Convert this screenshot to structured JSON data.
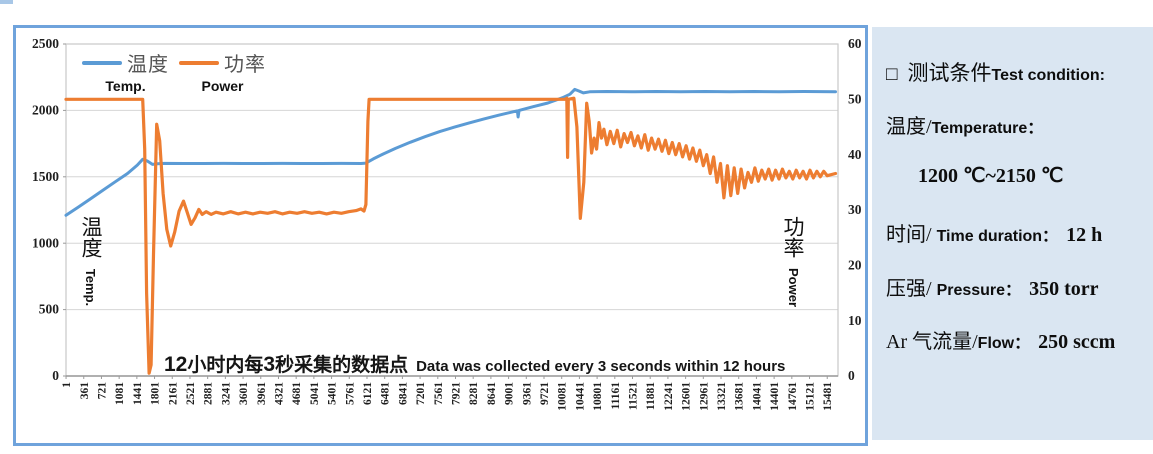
{
  "colors": {
    "temp_blue": "#5B9BD5",
    "power_orange": "#ED7D31",
    "box_border": "#6FA3DC",
    "panel_bg": "#DAE6F2",
    "grid": "#D6D6D6",
    "plot_border": "#C9C9C9",
    "tick_text": "#1F1F1F"
  },
  "chart_data": {
    "type": "line",
    "legend": {
      "position": "top-left-inside",
      "entries": [
        {
          "zh": "温度",
          "en": "Temp."
        },
        {
          "zh": "功率",
          "en": "Power"
        }
      ]
    },
    "x_axis": {
      "max": 15700,
      "tick_labels": [
        "1",
        "361",
        "721",
        "1081",
        "1441",
        "1801",
        "2161",
        "2521",
        "2881",
        "3241",
        "3601",
        "3961",
        "4321",
        "4681",
        "5041",
        "5401",
        "5761",
        "6121",
        "6481",
        "6841",
        "7201",
        "7561",
        "7921",
        "8281",
        "8641",
        "9001",
        "9361",
        "9721",
        "10081",
        "10441",
        "10801",
        "11161",
        "11521",
        "11881",
        "12241",
        "12601",
        "12961",
        "13321",
        "13681",
        "14041",
        "14401",
        "14761",
        "15121",
        "15481"
      ]
    },
    "y_left": {
      "title_zh": "温度",
      "title_en": "Temp.",
      "min": 0,
      "max": 2500,
      "ticks": [
        0,
        500,
        1000,
        1500,
        2000,
        2500
      ]
    },
    "y_right": {
      "title_zh": "功率",
      "title_en": "Power",
      "min": 0,
      "max": 60,
      "ticks": [
        0,
        10,
        20,
        30,
        40,
        50,
        60
      ]
    },
    "grid": true,
    "series": [
      {
        "name_zh": "温度",
        "name_en": "Temp.",
        "axis": "left",
        "color": "#5B9BD5",
        "points": [
          [
            1,
            1210
          ],
          [
            250,
            1272
          ],
          [
            500,
            1335
          ],
          [
            750,
            1398
          ],
          [
            1000,
            1462
          ],
          [
            1250,
            1525
          ],
          [
            1450,
            1588
          ],
          [
            1560,
            1632
          ],
          [
            1650,
            1620
          ],
          [
            1760,
            1593
          ],
          [
            1860,
            1598
          ],
          [
            2000,
            1601
          ],
          [
            2400,
            1600
          ],
          [
            2800,
            1600
          ],
          [
            3200,
            1601
          ],
          [
            3600,
            1600
          ],
          [
            4000,
            1600
          ],
          [
            4400,
            1601
          ],
          [
            4800,
            1600
          ],
          [
            5200,
            1600
          ],
          [
            5600,
            1601
          ],
          [
            6000,
            1600
          ],
          [
            6100,
            1603
          ],
          [
            6250,
            1635
          ],
          [
            6450,
            1672
          ],
          [
            6700,
            1714
          ],
          [
            7000,
            1760
          ],
          [
            7300,
            1802
          ],
          [
            7600,
            1840
          ],
          [
            7900,
            1874
          ],
          [
            8200,
            1906
          ],
          [
            8500,
            1936
          ],
          [
            8800,
            1964
          ],
          [
            9100,
            1990
          ],
          [
            9180,
            1996
          ],
          [
            9195,
            1950
          ],
          [
            9215,
            2000
          ],
          [
            9500,
            2028
          ],
          [
            9800,
            2056
          ],
          [
            10100,
            2096
          ],
          [
            10250,
            2122
          ],
          [
            10345,
            2158
          ],
          [
            10430,
            2146
          ],
          [
            10520,
            2132
          ],
          [
            10650,
            2140
          ],
          [
            11000,
            2142
          ],
          [
            11500,
            2140
          ],
          [
            12000,
            2142
          ],
          [
            12500,
            2140
          ],
          [
            13000,
            2142
          ],
          [
            13500,
            2140
          ],
          [
            14000,
            2142
          ],
          [
            14500,
            2140
          ],
          [
            15000,
            2142
          ],
          [
            15650,
            2141
          ]
        ]
      },
      {
        "name_zh": "功率",
        "name_en": "Power",
        "axis": "right",
        "color": "#ED7D31",
        "points": [
          [
            1,
            50
          ],
          [
            800,
            50
          ],
          [
            1560,
            50
          ],
          [
            1600,
            41
          ],
          [
            1640,
            15
          ],
          [
            1690,
            0.5
          ],
          [
            1730,
            2
          ],
          [
            1780,
            22
          ],
          [
            1845,
            45.5
          ],
          [
            1905,
            42.5
          ],
          [
            1975,
            33
          ],
          [
            2050,
            26.5
          ],
          [
            2130,
            23.5
          ],
          [
            2210,
            26
          ],
          [
            2300,
            29.8
          ],
          [
            2390,
            31.6
          ],
          [
            2470,
            29.4
          ],
          [
            2545,
            27.4
          ],
          [
            2625,
            28.6
          ],
          [
            2700,
            30.1
          ],
          [
            2770,
            29.2
          ],
          [
            2850,
            29.7
          ],
          [
            2950,
            29.2
          ],
          [
            3050,
            29.6
          ],
          [
            3200,
            29.3
          ],
          [
            3350,
            29.7
          ],
          [
            3500,
            29.3
          ],
          [
            3650,
            29.6
          ],
          [
            3800,
            29.3
          ],
          [
            3950,
            29.6
          ],
          [
            4100,
            29.4
          ],
          [
            4250,
            29.7
          ],
          [
            4400,
            29.3
          ],
          [
            4550,
            29.6
          ],
          [
            4700,
            29.4
          ],
          [
            4850,
            29.7
          ],
          [
            5000,
            29.4
          ],
          [
            5150,
            29.6
          ],
          [
            5300,
            29.3
          ],
          [
            5450,
            29.6
          ],
          [
            5600,
            29.4
          ],
          [
            5750,
            29.7
          ],
          [
            5900,
            29.9
          ],
          [
            6000,
            30.2
          ],
          [
            6060,
            29.8
          ],
          [
            6100,
            31
          ],
          [
            6140,
            46
          ],
          [
            6165,
            50
          ],
          [
            6600,
            50
          ],
          [
            7100,
            50
          ],
          [
            7600,
            50
          ],
          [
            8100,
            50
          ],
          [
            8600,
            50
          ],
          [
            9100,
            50
          ],
          [
            9600,
            50
          ],
          [
            10000,
            50
          ],
          [
            10150,
            50
          ],
          [
            10185,
            50.2
          ],
          [
            10200,
            39.5
          ],
          [
            10215,
            50
          ],
          [
            10330,
            50.2
          ],
          [
            10390,
            45
          ],
          [
            10460,
            28.5
          ],
          [
            10530,
            35
          ],
          [
            10590,
            49.3
          ],
          [
            10640,
            46
          ],
          [
            10690,
            40.3
          ],
          [
            10740,
            43
          ],
          [
            10790,
            41
          ],
          [
            10840,
            45.8
          ],
          [
            10890,
            43
          ],
          [
            10940,
            44.6
          ],
          [
            11000,
            41.8
          ],
          [
            11070,
            44.2
          ],
          [
            11140,
            42
          ],
          [
            11210,
            44.4
          ],
          [
            11280,
            41.4
          ],
          [
            11350,
            43.8
          ],
          [
            11420,
            42.2
          ],
          [
            11490,
            44
          ],
          [
            11560,
            41.6
          ],
          [
            11630,
            43.4
          ],
          [
            11700,
            41.2
          ],
          [
            11770,
            43.6
          ],
          [
            11840,
            40.8
          ],
          [
            11910,
            43
          ],
          [
            11980,
            41
          ],
          [
            12050,
            42.8
          ],
          [
            12120,
            40.6
          ],
          [
            12190,
            42.6
          ],
          [
            12260,
            40.2
          ],
          [
            12330,
            42.2
          ],
          [
            12400,
            40
          ],
          [
            12470,
            42
          ],
          [
            12540,
            39.6
          ],
          [
            12610,
            41.6
          ],
          [
            12680,
            39.2
          ],
          [
            12750,
            41.2
          ],
          [
            12820,
            38.8
          ],
          [
            12890,
            40.8
          ],
          [
            12960,
            38
          ],
          [
            13030,
            40
          ],
          [
            13100,
            36.6
          ],
          [
            13170,
            39.6
          ],
          [
            13240,
            35
          ],
          [
            13310,
            38.4
          ],
          [
            13380,
            32.2
          ],
          [
            13450,
            38
          ],
          [
            13520,
            32.6
          ],
          [
            13590,
            37.6
          ],
          [
            13660,
            33
          ],
          [
            13730,
            37.4
          ],
          [
            13800,
            34
          ],
          [
            13870,
            36.8
          ],
          [
            13940,
            35
          ],
          [
            14010,
            37.6
          ],
          [
            14080,
            35.2
          ],
          [
            14150,
            37.2
          ],
          [
            14220,
            35.6
          ],
          [
            14290,
            37.4
          ],
          [
            14360,
            35.4
          ],
          [
            14430,
            37.2
          ],
          [
            14500,
            35.6
          ],
          [
            14570,
            37.4
          ],
          [
            14640,
            35.8
          ],
          [
            14710,
            37
          ],
          [
            14780,
            35.6
          ],
          [
            14850,
            37.2
          ],
          [
            14920,
            35.8
          ],
          [
            14990,
            37
          ],
          [
            15060,
            35.6
          ],
          [
            15130,
            37.2
          ],
          [
            15200,
            35.8
          ],
          [
            15270,
            37
          ],
          [
            15340,
            36
          ],
          [
            15410,
            37
          ],
          [
            15480,
            36.2
          ],
          [
            15650,
            36.6
          ]
        ]
      }
    ],
    "annotation": {
      "zh_parts": [
        "12",
        "小时内每",
        "3",
        "秒采集的数据点"
      ],
      "en": "Data was collected every 3 seconds within 12 hours"
    }
  },
  "conditions": {
    "bullet": "□",
    "title_zh": "测试条件",
    "title_en": "Test condition:",
    "items": [
      {
        "zh": "温度/",
        "en": "Temperature：",
        "value": ""
      },
      {
        "zh": "",
        "en": "",
        "value": "1200 ℃~2150 ℃"
      },
      {
        "zh": "时间/ ",
        "en": "Time duration：",
        "value": "12 h"
      },
      {
        "zh": "压强/ ",
        "en": "Pressure：",
        "value": "350 torr"
      },
      {
        "zh": "Ar 气流量/",
        "en": "Flow：",
        "value": "250 sccm"
      }
    ]
  }
}
